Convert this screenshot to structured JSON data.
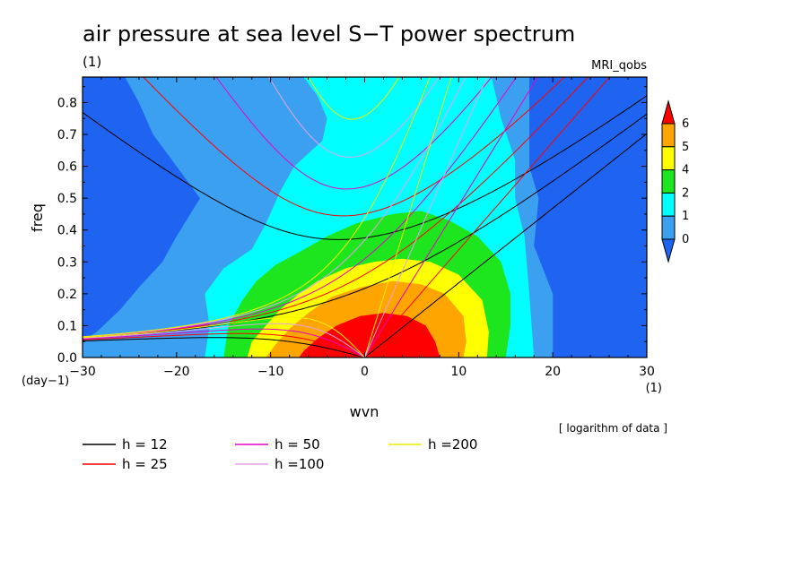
{
  "chart_data": {
    "type": "heatmap",
    "title": "air pressure at sea level S−T power spectrum",
    "title_unit": "(1)",
    "model_label": "MRI_qobs",
    "xlabel": "wvn",
    "x_unit": "(1)",
    "ylabel": "freq",
    "y_unit": "(day−1)",
    "xlim": [
      -30,
      30
    ],
    "ylim": [
      0,
      0.88
    ],
    "xticks": [
      -30,
      -20,
      -10,
      0,
      10,
      20,
      30
    ],
    "xtick_labels": [
      "−30",
      "−20",
      "−10",
      "0",
      "10",
      "20",
      "30"
    ],
    "yticks": [
      0.0,
      0.1,
      0.2,
      0.3,
      0.4,
      0.5,
      0.6,
      0.7,
      0.8
    ],
    "ytick_labels": [
      "0.0",
      "0.1",
      "0.2",
      "0.3",
      "0.4",
      "0.5",
      "0.6",
      "0.7",
      "0.8"
    ],
    "colorbar": {
      "levels": [
        0,
        1,
        2,
        4,
        5,
        6
      ],
      "labels": [
        "0",
        "1",
        "2",
        "4",
        "5",
        "6"
      ],
      "colors": [
        "#1e64f0",
        "#3ca0f0",
        "#00ffff",
        "#1ee61e",
        "#ffff00",
        "#ffa500",
        "#ff0000"
      ]
    },
    "note": "[ logarithm of data ]",
    "dispersion_curves": [
      {
        "label": "h = 12",
        "h": 12,
        "color": "#000000"
      },
      {
        "label": "h = 25",
        "h": 25,
        "color": "#ff0000"
      },
      {
        "label": "h = 50",
        "h": 50,
        "color": "#e600c8"
      },
      {
        "label": "h =100",
        "h": 100,
        "color": "#e6a0e6"
      },
      {
        "label": "h =200",
        "h": 200,
        "color": "#f0f000"
      }
    ],
    "filled_regions": [
      {
        "level": 1,
        "fill": "#3ca0f0",
        "points": [
          [
            -25.5,
            0.88
          ],
          [
            -24,
            0.8
          ],
          [
            -22.5,
            0.7
          ],
          [
            -20,
            0.6
          ],
          [
            -17.5,
            0.5
          ],
          [
            -20,
            0.38
          ],
          [
            -21.5,
            0.3
          ],
          [
            -24,
            0.22
          ],
          [
            -26,
            0.15
          ],
          [
            -28.5,
            0.08
          ],
          [
            -30,
            0.05
          ],
          [
            -30,
            0
          ],
          [
            20,
            0
          ],
          [
            20,
            0.2
          ],
          [
            18,
            0.35
          ],
          [
            18.5,
            0.5
          ],
          [
            17.5,
            0.6
          ],
          [
            17.5,
            0.72
          ],
          [
            17.5,
            0.88
          ]
        ]
      },
      {
        "level": 2,
        "fill": "#00ffff",
        "points": [
          [
            -6.5,
            0.88
          ],
          [
            -5,
            0.82
          ],
          [
            -4,
            0.75
          ],
          [
            -4.5,
            0.68
          ],
          [
            -6,
            0.64
          ],
          [
            -7.5,
            0.6
          ],
          [
            -9,
            0.52
          ],
          [
            -10.5,
            0.42
          ],
          [
            -12,
            0.34
          ],
          [
            -15,
            0.28
          ],
          [
            -17,
            0.2
          ],
          [
            -16.5,
            0.1
          ],
          [
            -17,
            0
          ],
          [
            18,
            0
          ],
          [
            17.5,
            0.2
          ],
          [
            17,
            0.38
          ],
          [
            16,
            0.5
          ],
          [
            16,
            0.62
          ],
          [
            14.5,
            0.75
          ],
          [
            13.5,
            0.88
          ]
        ]
      },
      {
        "level": 3,
        "fill": "#1ee61e",
        "points": [
          [
            -15,
            0
          ],
          [
            -14.5,
            0.1
          ],
          [
            -13,
            0.18
          ],
          [
            -11.5,
            0.24
          ],
          [
            -9.5,
            0.29
          ],
          [
            -7,
            0.33
          ],
          [
            -4,
            0.38
          ],
          [
            -1,
            0.42
          ],
          [
            3,
            0.45
          ],
          [
            6,
            0.46
          ],
          [
            9,
            0.43
          ],
          [
            12,
            0.38
          ],
          [
            14.5,
            0.3
          ],
          [
            15.5,
            0.2
          ],
          [
            15.5,
            0.1
          ],
          [
            15,
            0
          ]
        ]
      },
      {
        "level": 4,
        "fill": "#ffff00",
        "points": [
          [
            -12.5,
            0
          ],
          [
            -12,
            0.05
          ],
          [
            -10.5,
            0.1
          ],
          [
            -9,
            0.15
          ],
          [
            -7,
            0.2
          ],
          [
            -5,
            0.24
          ],
          [
            -2,
            0.28
          ],
          [
            1,
            0.3
          ],
          [
            4,
            0.31
          ],
          [
            7,
            0.3
          ],
          [
            10,
            0.26
          ],
          [
            12.5,
            0.18
          ],
          [
            13.2,
            0.08
          ],
          [
            13,
            0
          ]
        ]
      },
      {
        "level": 5,
        "fill": "#ffa500",
        "points": [
          [
            -10.5,
            0
          ],
          [
            -9.5,
            0.04
          ],
          [
            -8,
            0.09
          ],
          [
            -6,
            0.14
          ],
          [
            -3.5,
            0.19
          ],
          [
            -0.5,
            0.22
          ],
          [
            3,
            0.24
          ],
          [
            6,
            0.23
          ],
          [
            8.5,
            0.2
          ],
          [
            10.5,
            0.13
          ],
          [
            10.8,
            0.05
          ],
          [
            10.5,
            0
          ]
        ]
      },
      {
        "level": 6,
        "fill": "#ff0000",
        "points": [
          [
            -7,
            0
          ],
          [
            -6.5,
            0.02
          ],
          [
            -5,
            0.06
          ],
          [
            -3,
            0.1
          ],
          [
            -0.5,
            0.13
          ],
          [
            2,
            0.14
          ],
          [
            4.5,
            0.13
          ],
          [
            6.5,
            0.1
          ],
          [
            7.5,
            0.05
          ],
          [
            8,
            0
          ]
        ]
      }
    ]
  }
}
